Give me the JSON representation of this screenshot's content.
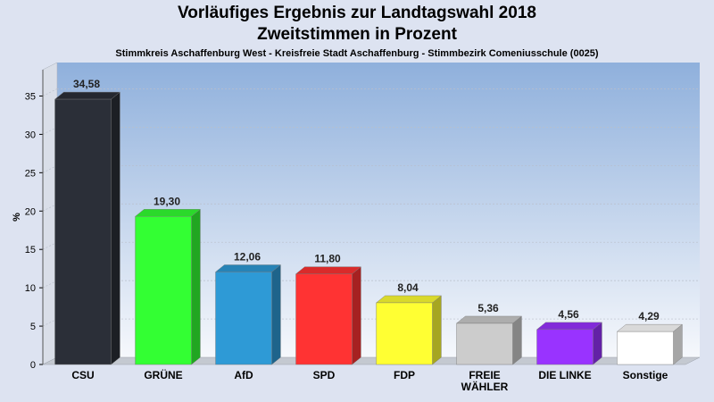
{
  "chart_data": {
    "type": "bar",
    "title": "Vorläufiges Ergebnis zur Landtagswahl 2018",
    "subtitle": "Zweitstimmen in Prozent",
    "caption": "Stimmkreis Aschaffenburg West - Kreisfreie Stadt Aschaffenburg - Stimmbezirk Comeniusschule (0025)",
    "ylabel": "%",
    "ylim": [
      0,
      37.5
    ],
    "yticks": [
      "0",
      "5",
      "10",
      "15",
      "20",
      "25",
      "30",
      "35"
    ],
    "grid": true,
    "categories": [
      "CSU",
      "GRÜNE",
      "AfD",
      "SPD",
      "FDP",
      "FREIE\nWÄHLER",
      "DIE LINKE",
      "Sonstige"
    ],
    "values": [
      34.58,
      19.3,
      12.06,
      11.8,
      8.04,
      5.36,
      4.56,
      4.29
    ],
    "value_labels": [
      "34,58",
      "19,30",
      "12,06",
      "11,80",
      "8,04",
      "5,36",
      "4,56",
      "4,29"
    ],
    "colors": [
      "#2b2f38",
      "#33ff33",
      "#2e9ad6",
      "#ff3333",
      "#ffff33",
      "#cccccc",
      "#9933ff",
      "#ffffff"
    ]
  }
}
